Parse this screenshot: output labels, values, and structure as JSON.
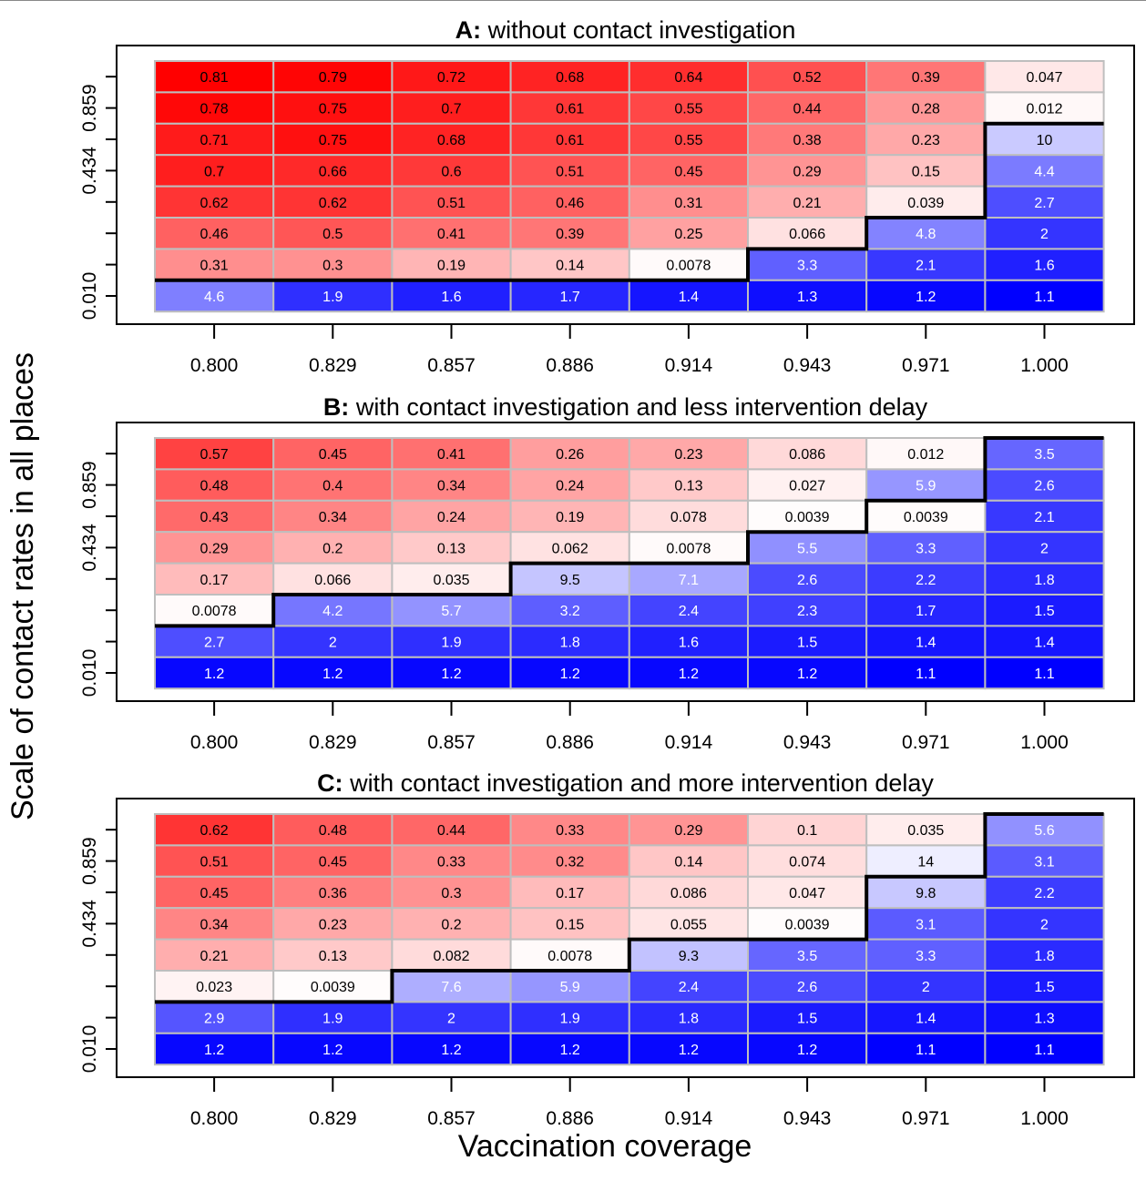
{
  "figure": {
    "ylabel": "Scale of contact rates in all places",
    "xlabel": "Vaccination coverage"
  },
  "colors": {
    "high_red": "#ff0000",
    "low_blue": "#0000ff",
    "cell_border": "#bebebe",
    "threshold_line": "#000000"
  },
  "chart_data": [
    {
      "type": "heatmap",
      "panel_letter": "A:",
      "title": "without contact investigation",
      "x_categories": [
        "0.800",
        "0.829",
        "0.857",
        "0.886",
        "0.914",
        "0.943",
        "0.971",
        "1.000"
      ],
      "y_tick_labels": [
        "0.859",
        "0.434",
        "0.010"
      ],
      "rows_top_to_bottom": [
        [
          "0.81",
          "0.79",
          "0.72",
          "0.68",
          "0.64",
          "0.52",
          "0.39",
          "0.047"
        ],
        [
          "0.78",
          "0.75",
          "0.7",
          "0.61",
          "0.55",
          "0.44",
          "0.28",
          "0.012"
        ],
        [
          "0.71",
          "0.75",
          "0.68",
          "0.61",
          "0.55",
          "0.38",
          "0.23",
          "10"
        ],
        [
          "0.7",
          "0.66",
          "0.6",
          "0.51",
          "0.45",
          "0.29",
          "0.15",
          "4.4"
        ],
        [
          "0.62",
          "0.62",
          "0.51",
          "0.46",
          "0.31",
          "0.21",
          "0.039",
          "2.7"
        ],
        [
          "0.46",
          "0.5",
          "0.41",
          "0.39",
          "0.25",
          "0.066",
          "4.8",
          "2"
        ],
        [
          "0.31",
          "0.3",
          "0.19",
          "0.14",
          "0.0078",
          "3.3",
          "2.1",
          "1.6"
        ],
        [
          "4.6",
          "1.9",
          "1.6",
          "1.7",
          "1.4",
          "1.3",
          "1.2",
          "1.1"
        ]
      ],
      "threshold_rows_per_column": [
        1,
        1,
        1,
        1,
        1,
        2,
        3,
        6
      ]
    },
    {
      "type": "heatmap",
      "panel_letter": "B:",
      "title": "with contact investigation and less intervention delay",
      "x_categories": [
        "0.800",
        "0.829",
        "0.857",
        "0.886",
        "0.914",
        "0.943",
        "0.971",
        "1.000"
      ],
      "y_tick_labels": [
        "0.859",
        "0.434",
        "0.010"
      ],
      "rows_top_to_bottom": [
        [
          "0.57",
          "0.45",
          "0.41",
          "0.26",
          "0.23",
          "0.086",
          "0.012",
          "3.5"
        ],
        [
          "0.48",
          "0.4",
          "0.34",
          "0.24",
          "0.13",
          "0.027",
          "5.9",
          "2.6"
        ],
        [
          "0.43",
          "0.34",
          "0.24",
          "0.19",
          "0.078",
          "0.0039",
          "0.0039",
          "2.1"
        ],
        [
          "0.29",
          "0.2",
          "0.13",
          "0.062",
          "0.0078",
          "5.5",
          "3.3",
          "2"
        ],
        [
          "0.17",
          "0.066",
          "0.035",
          "9.5",
          "7.1",
          "2.6",
          "2.2",
          "1.8"
        ],
        [
          "0.0078",
          "4.2",
          "5.7",
          "3.2",
          "2.4",
          "2.3",
          "1.7",
          "1.5"
        ],
        [
          "2.7",
          "2",
          "1.9",
          "1.8",
          "1.6",
          "1.5",
          "1.4",
          "1.4"
        ],
        [
          "1.2",
          "1.2",
          "1.2",
          "1.2",
          "1.2",
          "1.2",
          "1.1",
          "1.1"
        ]
      ],
      "threshold_rows_per_column": [
        2,
        3,
        3,
        4,
        4,
        5,
        6,
        8
      ]
    },
    {
      "type": "heatmap",
      "panel_letter": "C:",
      "title": "with contact investigation and more intervention delay",
      "x_categories": [
        "0.800",
        "0.829",
        "0.857",
        "0.886",
        "0.914",
        "0.943",
        "0.971",
        "1.000"
      ],
      "y_tick_labels": [
        "0.859",
        "0.434",
        "0.010"
      ],
      "rows_top_to_bottom": [
        [
          "0.62",
          "0.48",
          "0.44",
          "0.33",
          "0.29",
          "0.1",
          "0.035",
          "5.6"
        ],
        [
          "0.51",
          "0.45",
          "0.33",
          "0.32",
          "0.14",
          "0.074",
          "14",
          "3.1"
        ],
        [
          "0.45",
          "0.36",
          "0.3",
          "0.17",
          "0.086",
          "0.047",
          "9.8",
          "2.2"
        ],
        [
          "0.34",
          "0.23",
          "0.2",
          "0.15",
          "0.055",
          "0.0039",
          "3.1",
          "2"
        ],
        [
          "0.21",
          "0.13",
          "0.082",
          "0.0078",
          "9.3",
          "3.5",
          "3.3",
          "1.8"
        ],
        [
          "0.023",
          "0.0039",
          "7.6",
          "5.9",
          "2.4",
          "2.6",
          "2",
          "1.5"
        ],
        [
          "2.9",
          "1.9",
          "2",
          "1.9",
          "1.8",
          "1.5",
          "1.4",
          "1.3"
        ],
        [
          "1.2",
          "1.2",
          "1.2",
          "1.2",
          "1.2",
          "1.2",
          "1.1",
          "1.1"
        ]
      ],
      "threshold_rows_per_column": [
        2,
        2,
        3,
        3,
        4,
        4,
        6,
        8
      ]
    }
  ]
}
